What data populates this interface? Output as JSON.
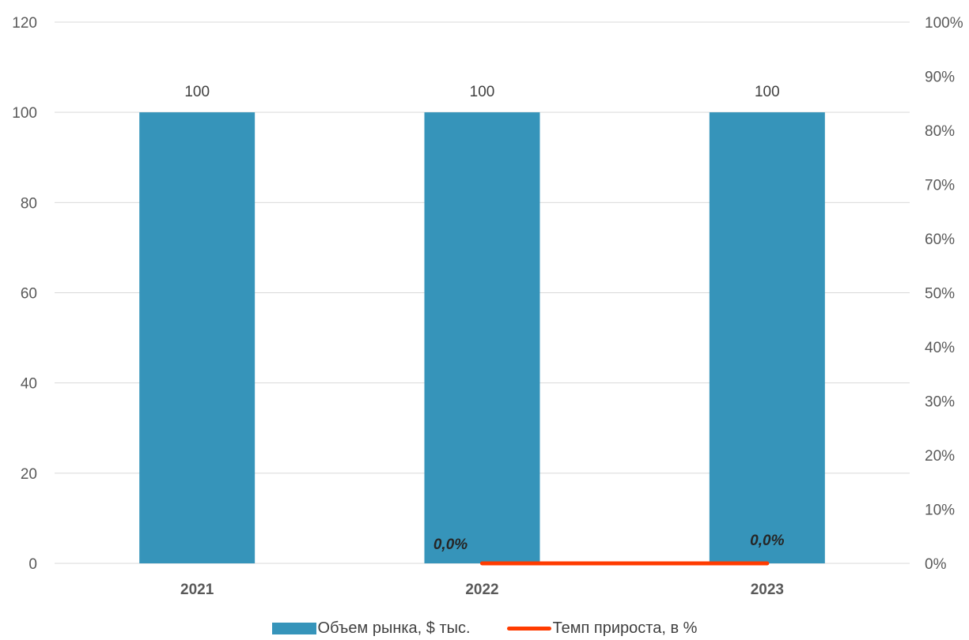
{
  "chart_data": {
    "type": "bar",
    "categories": [
      "2021",
      "2022",
      "2023"
    ],
    "series": [
      {
        "name": "Объем рынка, $ тыс.",
        "kind": "bar",
        "axis": "left",
        "color": "#3694BA",
        "values": [
          100,
          100,
          100
        ],
        "data_labels": [
          "100",
          "100",
          "100"
        ]
      },
      {
        "name": "Темп прироста, в %",
        "kind": "line",
        "axis": "right",
        "color": "#FF3B00",
        "values": [
          null,
          0.0,
          0.0
        ],
        "data_labels": [
          "",
          "0,0%",
          "0,0%"
        ]
      }
    ],
    "y_left": {
      "ylim": [
        0,
        120
      ],
      "ticks": [
        "0",
        "20",
        "40",
        "60",
        "80",
        "100",
        "120"
      ]
    },
    "y_right": {
      "ylim": [
        0,
        100
      ],
      "ticks": [
        "0%",
        "10%",
        "20%",
        "30%",
        "40%",
        "50%",
        "60%",
        "70%",
        "80%",
        "90%",
        "100%"
      ]
    },
    "grid": true,
    "legend_position": "bottom"
  },
  "legend": {
    "bar_label": "Объем рынка, $ тыс.",
    "line_label": "Темп прироста, в %"
  }
}
